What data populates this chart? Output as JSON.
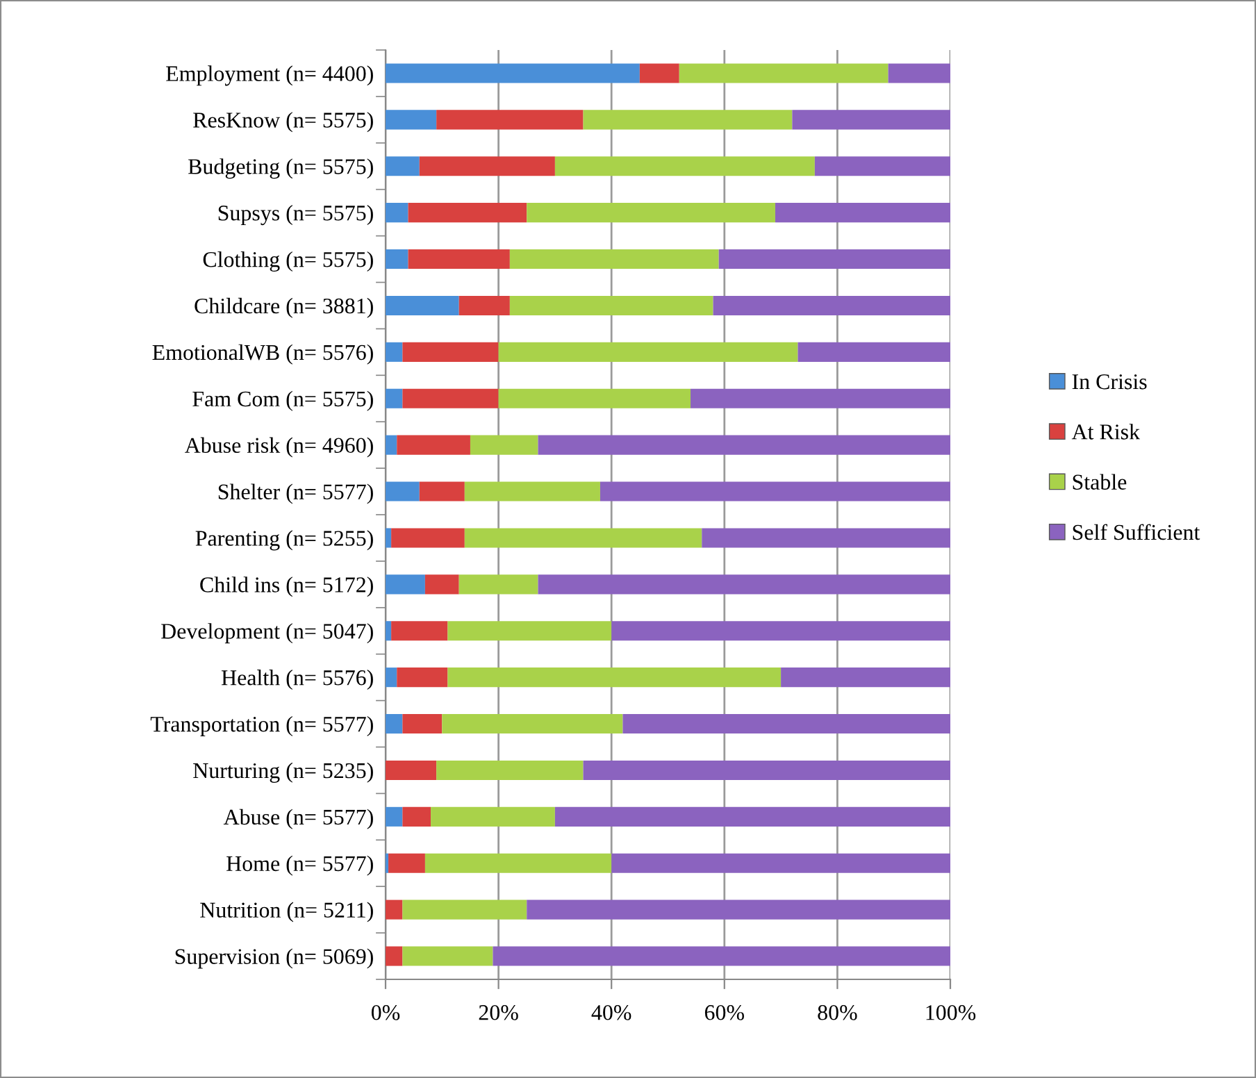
{
  "chart_data": {
    "type": "bar",
    "orientation": "horizontal",
    "stacked": true,
    "categories": [
      "Employment (n= 4400)",
      "ResKnow (n= 5575)",
      "Budgeting (n= 5575)",
      "Supsys (n= 5575)",
      "Clothing (n= 5575)",
      "Childcare (n= 3881)",
      "EmotionalWB (n= 5576)",
      "Fam Com (n= 5575)",
      "Abuse risk (n= 4960)",
      "Shelter (n= 5577)",
      "Parenting (n= 5255)",
      "Child ins (n= 5172)",
      "Development (n= 5047)",
      "Health (n= 5576)",
      "Transportation (n= 5577)",
      "Nurturing (n= 5235)",
      "Abuse (n= 5577)",
      "Home (n= 5577)",
      "Nutrition (n= 5211)",
      "Supervision (n= 5069)"
    ],
    "series": [
      {
        "name": "In Crisis",
        "color": "#4a8fd8",
        "values": [
          45,
          9,
          6,
          4,
          4,
          13,
          3,
          3,
          2,
          6,
          1,
          7,
          1,
          2,
          3,
          null,
          3,
          0.5,
          null,
          null
        ]
      },
      {
        "name": "At Risk",
        "color": "#d9413f",
        "values": [
          7,
          26,
          24,
          21,
          18,
          9,
          17,
          17,
          13,
          8,
          13,
          6,
          10,
          9,
          7,
          9,
          5,
          6.5,
          3,
          3
        ]
      },
      {
        "name": "Stable",
        "color": "#a9d24a",
        "values": [
          37,
          37,
          46,
          44,
          37,
          36,
          53,
          34,
          12,
          24,
          42,
          14,
          29,
          59,
          32,
          26,
          22,
          33,
          22,
          16
        ]
      },
      {
        "name": "Self Sufficient",
        "color": "#8b63bf",
        "values": [
          11,
          28,
          24,
          31,
          41,
          42,
          27,
          46,
          73,
          62,
          44,
          73,
          60,
          30,
          58,
          65,
          70,
          60,
          75,
          81
        ]
      }
    ],
    "xlim": [
      0,
      100
    ],
    "xticks": [
      {
        "value": 0,
        "label": "0%"
      },
      {
        "value": 20,
        "label": "20%"
      },
      {
        "value": 40,
        "label": "40%"
      },
      {
        "value": 60,
        "label": "60%"
      },
      {
        "value": 80,
        "label": "80%"
      },
      {
        "value": 100,
        "label": "100%"
      }
    ],
    "grid": "x",
    "legend": "right"
  }
}
